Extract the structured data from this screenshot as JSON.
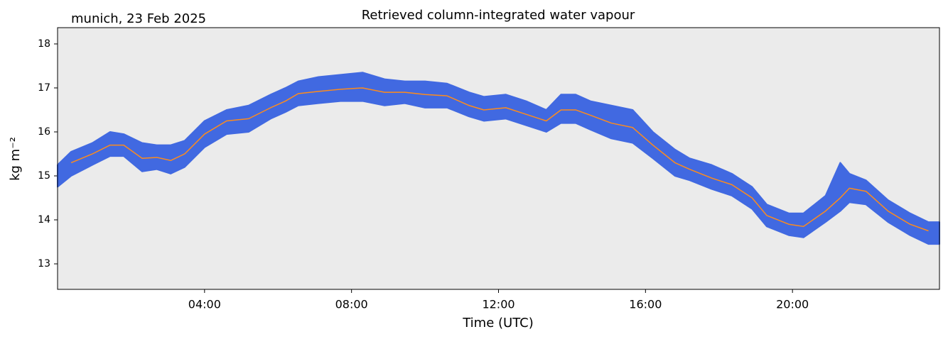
{
  "chart_data": {
    "type": "line",
    "title": "Retrieved column-integrated water vapour",
    "subtitle": "munich, 23 Feb 2025",
    "xlabel": "Time (UTC)",
    "ylabel": "kg m⁻²",
    "xlim": [
      0,
      24
    ],
    "xticks": [
      {
        "value": 4,
        "label": "04:00"
      },
      {
        "value": 8,
        "label": "08:00"
      },
      {
        "value": 12,
        "label": "12:00"
      },
      {
        "value": 16,
        "label": "16:00"
      },
      {
        "value": 20,
        "label": "20:00"
      }
    ],
    "ylim": [
      12.42,
      18.37
    ],
    "yticks": [
      13,
      14,
      15,
      16,
      17,
      18
    ],
    "background": "#ebebeb",
    "band": {
      "color": "#4169e1",
      "x": [
        0,
        0.37,
        0.95,
        1.43,
        1.8,
        2.3,
        2.7,
        3.08,
        3.46,
        4.0,
        4.6,
        5.2,
        5.8,
        6.2,
        6.55,
        7.1,
        7.7,
        8.3,
        8.9,
        9.45,
        10.0,
        10.6,
        11.2,
        11.6,
        12.2,
        12.75,
        13.3,
        13.7,
        14.1,
        14.5,
        15.07,
        15.65,
        16.2,
        16.8,
        17.2,
        17.8,
        18.35,
        18.9,
        19.3,
        19.9,
        20.3,
        20.9,
        21.3,
        21.55,
        22.0,
        22.6,
        23.2,
        23.7,
        24
      ],
      "low": [
        14.75,
        15.0,
        15.25,
        15.45,
        15.45,
        15.1,
        15.15,
        15.05,
        15.2,
        15.65,
        15.95,
        16.0,
        16.3,
        16.45,
        16.6,
        16.65,
        16.7,
        16.7,
        16.6,
        16.65,
        16.55,
        16.55,
        16.35,
        16.25,
        16.3,
        16.15,
        16.0,
        16.2,
        16.2,
        16.05,
        15.85,
        15.75,
        15.4,
        15.0,
        14.9,
        14.7,
        14.55,
        14.25,
        13.85,
        13.65,
        13.6,
        13.95,
        14.2,
        14.4,
        14.35,
        13.95,
        13.65,
        13.45,
        13.45
      ],
      "high": [
        15.25,
        15.55,
        15.75,
        16.0,
        15.95,
        15.75,
        15.7,
        15.7,
        15.8,
        16.25,
        16.5,
        16.6,
        16.85,
        17.0,
        17.15,
        17.25,
        17.3,
        17.35,
        17.2,
        17.15,
        17.15,
        17.1,
        16.9,
        16.8,
        16.85,
        16.7,
        16.5,
        16.85,
        16.85,
        16.7,
        16.6,
        16.5,
        16.0,
        15.6,
        15.4,
        15.25,
        15.05,
        14.75,
        14.35,
        14.15,
        14.15,
        14.55,
        15.3,
        15.05,
        14.9,
        14.45,
        14.15,
        13.95,
        13.95
      ]
    },
    "series": [
      {
        "color": "#ff8c1a",
        "x": [
          0.37,
          0.95,
          1.43,
          1.8,
          2.3,
          2.7,
          3.08,
          3.46,
          4.0,
          4.6,
          5.2,
          5.8,
          6.2,
          6.55,
          7.1,
          7.7,
          8.3,
          8.9,
          9.45,
          10.0,
          10.6,
          11.2,
          11.6,
          12.2,
          12.75,
          13.3,
          13.7,
          14.1,
          14.5,
          15.07,
          15.65,
          16.2,
          16.8,
          17.2,
          17.8,
          18.35,
          18.9,
          19.3,
          19.9,
          20.3,
          20.9,
          21.3,
          21.55,
          22.0,
          22.6,
          23.2,
          23.7
        ],
        "values": [
          15.3,
          15.5,
          15.7,
          15.7,
          15.4,
          15.42,
          15.35,
          15.5,
          15.95,
          16.25,
          16.3,
          16.55,
          16.7,
          16.87,
          16.92,
          16.97,
          17.0,
          16.9,
          16.9,
          16.85,
          16.82,
          16.6,
          16.5,
          16.55,
          16.4,
          16.25,
          16.5,
          16.5,
          16.38,
          16.2,
          16.1,
          15.7,
          15.3,
          15.15,
          14.95,
          14.8,
          14.5,
          14.1,
          13.9,
          13.85,
          14.2,
          14.5,
          14.72,
          14.65,
          14.2,
          13.9,
          13.75
        ]
      }
    ]
  }
}
